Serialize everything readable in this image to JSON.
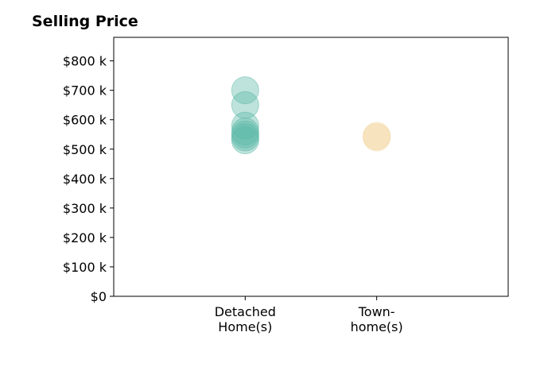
{
  "chart_data": {
    "type": "scatter",
    "title": "Selling Price",
    "xlabel": "",
    "ylabel": "",
    "categories": [
      "Detached\nHome(s)",
      "Town-\nhome(s)"
    ],
    "y_tick_labels": [
      "$0",
      "$100 k",
      "$200 k",
      "$300 k",
      "$400 k",
      "$500 k",
      "$600 k",
      "$700 k",
      "$800 k"
    ],
    "y_tick_values": [
      0,
      100000,
      200000,
      300000,
      400000,
      500000,
      600000,
      700000,
      800000
    ],
    "ylim": [
      0,
      880000
    ],
    "grid": false,
    "series": [
      {
        "category": "Detached\nHome(s)",
        "color": "#5db8a8",
        "values": [
          700000,
          650000,
          580000,
          560000,
          550000,
          540000,
          530000
        ]
      },
      {
        "category": "Town-\nhome(s)",
        "color": "#f2d49a",
        "values": [
          545000,
          540000
        ]
      }
    ]
  }
}
